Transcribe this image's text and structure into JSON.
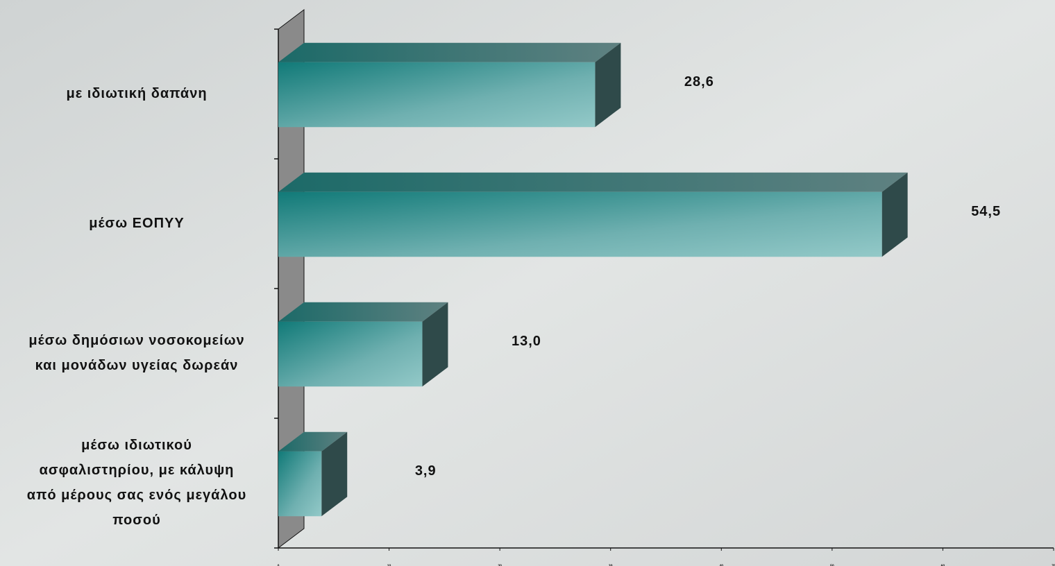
{
  "chart_data": {
    "type": "bar3d_horizontal",
    "categories": [
      [
        "με ιδιωτική δαπάνη"
      ],
      [
        "μέσω ΕΟΠΥΥ"
      ],
      [
        "μέσω δημόσιων νοσοκομείων",
        "και μονάδων υγείας δωρεάν"
      ],
      [
        "μέσω ιδιωτικού",
        "ασφαλιστηρίου, με κάλυψη",
        "από μέρους σας ενός μεγάλου",
        "ποσού"
      ]
    ],
    "values": [
      28.6,
      54.5,
      13.0,
      3.9
    ],
    "value_labels": [
      "28,6",
      "54,5",
      "13,0",
      "3,9"
    ],
    "color": "#1a8080",
    "xlim": [
      0,
      70
    ],
    "xticks": [
      0,
      10,
      20,
      30,
      40,
      50,
      60,
      70
    ]
  }
}
